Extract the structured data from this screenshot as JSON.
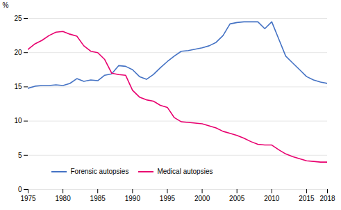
{
  "chart_data": {
    "type": "line",
    "x": [
      1975,
      1976,
      1977,
      1978,
      1979,
      1980,
      1981,
      1982,
      1983,
      1984,
      1985,
      1986,
      1987,
      1988,
      1989,
      1990,
      1991,
      1992,
      1993,
      1994,
      1995,
      1996,
      1997,
      1998,
      1999,
      2000,
      2001,
      2002,
      2003,
      2004,
      2005,
      2006,
      2007,
      2008,
      2009,
      2010,
      2011,
      2012,
      2013,
      2014,
      2015,
      2016,
      2017,
      2018
    ],
    "series": [
      {
        "name": "Forensic autopsies",
        "color": "#4472C4",
        "values": [
          14.8,
          15.1,
          15.2,
          15.2,
          15.3,
          15.2,
          15.5,
          16.2,
          15.8,
          16.0,
          15.9,
          16.7,
          16.9,
          18.1,
          18.0,
          17.5,
          16.5,
          16.1,
          16.8,
          17.8,
          18.7,
          19.5,
          20.2,
          20.3,
          20.5,
          20.7,
          21.0,
          21.5,
          22.5,
          24.2,
          24.4,
          24.5,
          24.5,
          24.5,
          23.5,
          24.5,
          22.0,
          19.5,
          18.5,
          17.5,
          16.5,
          16.0,
          15.7,
          15.5
        ]
      },
      {
        "name": "Medical autopsies",
        "color": "#E8006F",
        "values": [
          20.5,
          21.3,
          21.8,
          22.5,
          23.0,
          23.1,
          22.7,
          22.4,
          21.0,
          20.2,
          20.0,
          19.0,
          17.0,
          16.8,
          16.7,
          14.5,
          13.5,
          13.1,
          12.9,
          12.3,
          12.0,
          10.5,
          9.9,
          9.8,
          9.7,
          9.6,
          9.3,
          9.0,
          8.5,
          8.2,
          7.9,
          7.5,
          7.0,
          6.6,
          6.5,
          6.5,
          5.8,
          5.2,
          4.8,
          4.5,
          4.2,
          4.1,
          4.0,
          4.0
        ]
      }
    ],
    "ylabel": "%",
    "xlim": [
      1975,
      2018
    ],
    "xticks": [
      1975,
      1980,
      1985,
      1990,
      1995,
      2000,
      2005,
      2010,
      2015,
      2018
    ],
    "ylim": [
      0,
      25
    ],
    "yticks": [
      0,
      5,
      10,
      15,
      20,
      25
    ],
    "grid": "y",
    "legend": "lower left"
  }
}
